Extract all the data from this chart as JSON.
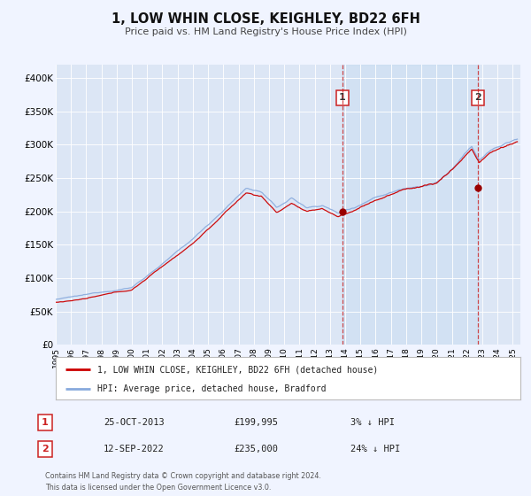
{
  "title": "1, LOW WHIN CLOSE, KEIGHLEY, BD22 6FH",
  "subtitle": "Price paid vs. HM Land Registry's House Price Index (HPI)",
  "ylim": [
    0,
    420000
  ],
  "xlim_start": 1995.0,
  "xlim_end": 2025.5,
  "background_color": "#f0f4ff",
  "plot_bg_color": "#dce6f5",
  "grid_color": "#c8d4e8",
  "legend_label_red": "1, LOW WHIN CLOSE, KEIGHLEY, BD22 6FH (detached house)",
  "legend_label_blue": "HPI: Average price, detached house, Bradford",
  "sale1_date": 2013.82,
  "sale1_price": 199995,
  "sale1_label": "1",
  "sale2_date": 2022.71,
  "sale2_price": 235000,
  "sale2_label": "2",
  "footer_line1": "Contains HM Land Registry data © Crown copyright and database right 2024.",
  "footer_line2": "This data is licensed under the Open Government Licence v3.0.",
  "annotation1_date": "25-OCT-2013",
  "annotation1_price": "£199,995",
  "annotation1_hpi": "3% ↓ HPI",
  "annotation2_date": "12-SEP-2022",
  "annotation2_price": "£235,000",
  "annotation2_hpi": "24% ↓ HPI",
  "red_line_color": "#cc0000",
  "blue_line_color": "#88aadd",
  "sale_dot_color": "#990000",
  "shade_color": "#dce8f8"
}
